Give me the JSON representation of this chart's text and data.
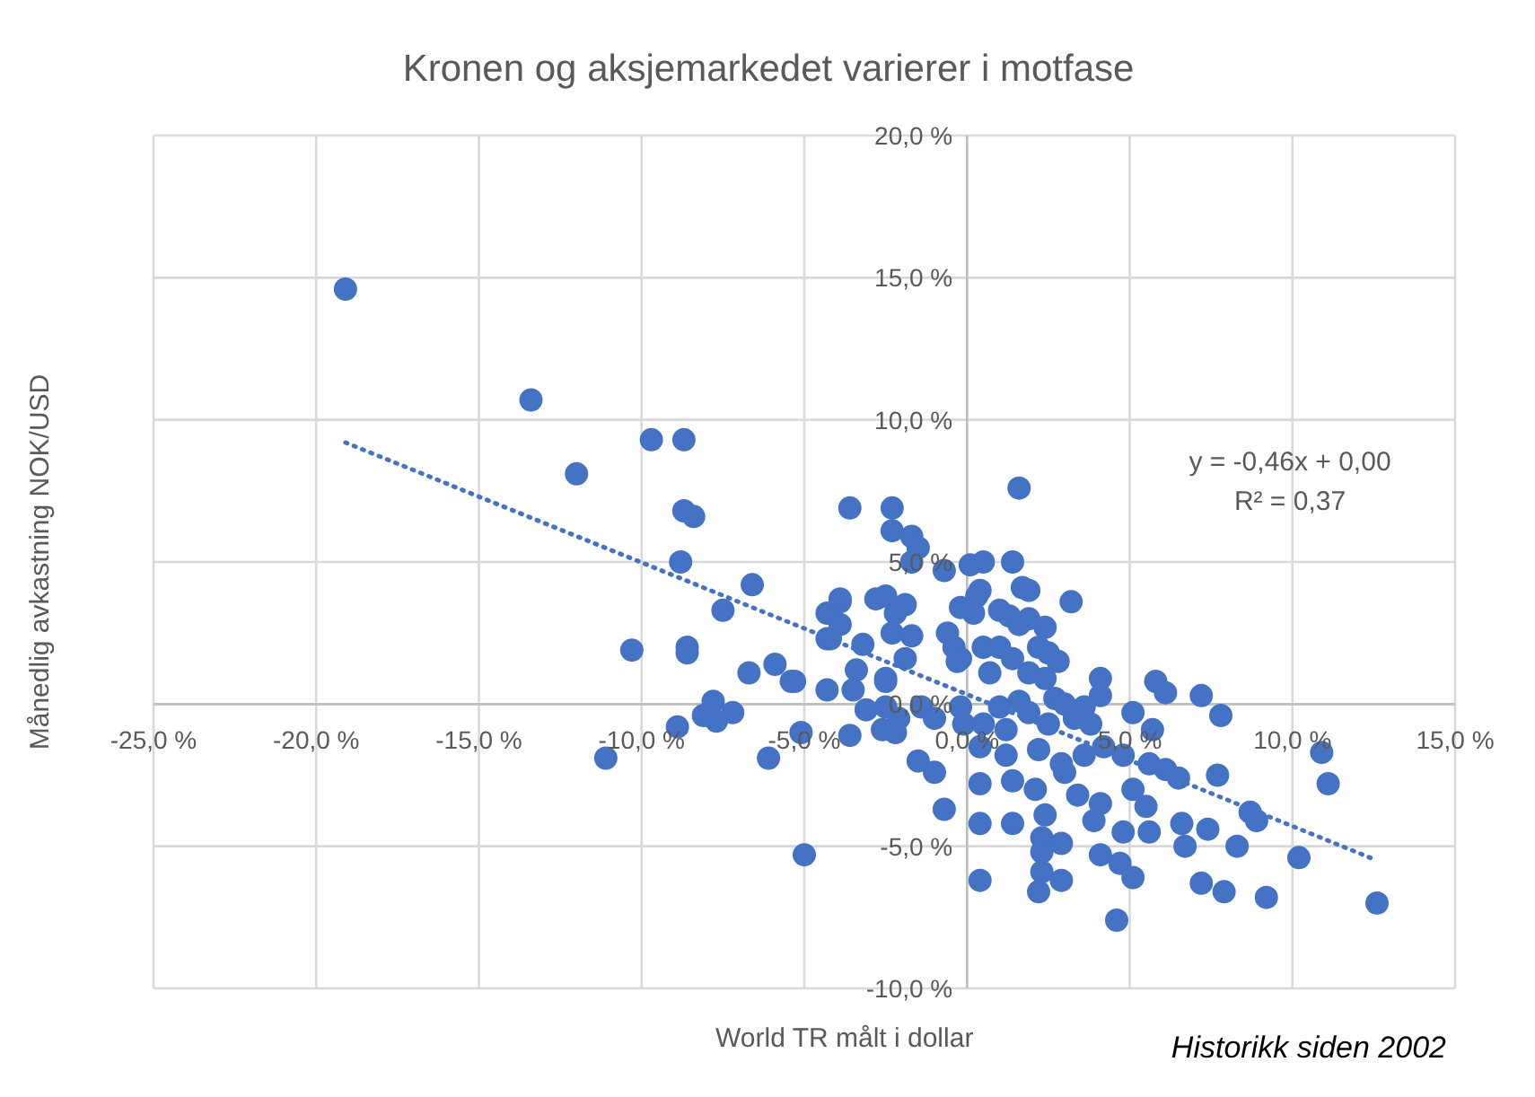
{
  "chart_data": {
    "type": "scatter",
    "title": "Kronen og aksjemarkedet varierer i motfase",
    "xlabel": "World TR målt i dollar",
    "ylabel": "Månedlig avkastning NOK/USD",
    "annotations": [
      "y = -0,46x + 0,00",
      "R² = 0,37",
      "Historikk siden 2002"
    ],
    "xlim": [
      -25,
      15
    ],
    "ylim": [
      -10,
      20
    ],
    "xticks": [
      {
        "value": -25,
        "label": "-25,0 %"
      },
      {
        "value": -20,
        "label": "-20,0 %"
      },
      {
        "value": -15,
        "label": "-15,0 %"
      },
      {
        "value": -10,
        "label": "-10,0 %"
      },
      {
        "value": -5,
        "label": "-5,0 %"
      },
      {
        "value": 0,
        "label": "0,0 %"
      },
      {
        "value": 5,
        "label": "5,0 %"
      },
      {
        "value": 10,
        "label": "10,0 %"
      },
      {
        "value": 15,
        "label": "15,0 %"
      }
    ],
    "yticks": [
      {
        "value": -10,
        "label": "-10,0 %"
      },
      {
        "value": -5,
        "label": "-5,0 %"
      },
      {
        "value": 0,
        "label": "0,0 %"
      },
      {
        "value": 5,
        "label": "5,0 %"
      },
      {
        "value": 10,
        "label": "10,0 %"
      },
      {
        "value": 15,
        "label": "15,0 %"
      },
      {
        "value": 20,
        "label": "20,0 %"
      }
    ],
    "grid": true,
    "marker": "circle",
    "series": [
      {
        "color": "#4472c4",
        "x": [
          -19.1,
          -13.4,
          -12.0,
          -9.7,
          -8.7,
          -8.7,
          -8.4,
          -8.8,
          -6.6,
          -7.5,
          -10.3,
          -8.6,
          -8.6,
          -6.7,
          -5.9,
          -5.4,
          -7.8,
          -8.1,
          -7.7,
          -7.2,
          -8.9,
          -11.1,
          -6.1,
          -4.3,
          -4.3,
          -4.3,
          -3.9,
          -5.0,
          -0.7,
          0.4,
          0.4,
          1.4,
          2.3,
          2.3,
          2.3,
          2.2,
          2.9,
          2.9,
          2.4,
          4.6,
          4.1,
          4.7,
          5.1,
          4.8,
          3.9,
          4.1,
          3.4,
          3.0,
          2.1,
          1.4,
          0.4,
          -1.0,
          -1.5,
          -3.6,
          5.8,
          6.1,
          7.2,
          7.8,
          5.1,
          5.7,
          10.9,
          11.1,
          6.1,
          6.5,
          7.7,
          5.1,
          5.5,
          8.7,
          8.9,
          6.6,
          7.4,
          5.6,
          6.7,
          8.3,
          10.2,
          7.2,
          7.9,
          9.2,
          12.6,
          -3.6,
          -2.3,
          -2.3,
          -1.7,
          -1.5,
          -1.7,
          1.6,
          1.4,
          0.1,
          0.5,
          -0.7,
          1.7,
          1.9,
          3.2,
          0.4,
          0.3,
          -0.2,
          0.2,
          -3.9,
          -3.9,
          -4.2,
          -2.8,
          -2.5,
          -1.9,
          -2.2,
          -2.3,
          -1.7,
          -3.2,
          -1.9,
          -3.4,
          -2.5,
          -2.5,
          -3.5,
          -5.3,
          -0.6,
          -0.4,
          -0.2,
          -0.3,
          0.7,
          0.5,
          1.0,
          1.3,
          1.6,
          1.9,
          2.4,
          2.2,
          2.5,
          2.8,
          1.9,
          2.4,
          1.4,
          1.0,
          4.1,
          -2.5,
          -2.1,
          -2.6,
          -1.4,
          -1.0,
          -0.2,
          -0.1,
          1.0,
          1.6,
          1.9,
          2.7,
          3.0,
          3.6,
          3.8,
          3.3,
          2.5,
          1.2,
          0.5,
          0.4,
          1.2,
          2.2,
          2.9,
          3.6,
          4.2,
          4.8,
          5.6,
          4.1,
          -2.2,
          -3.1,
          -5.1
        ],
        "values": [
          14.6,
          10.7,
          8.1,
          9.3,
          9.3,
          6.8,
          6.6,
          5.0,
          4.2,
          3.3,
          1.9,
          2.0,
          1.8,
          1.1,
          1.4,
          0.8,
          0.1,
          -0.4,
          -0.6,
          -0.3,
          -0.8,
          -1.9,
          -1.9,
          0.5,
          2.3,
          3.2,
          3.6,
          -5.3,
          -3.7,
          -6.2,
          -4.2,
          -4.2,
          -4.7,
          -5.2,
          -5.9,
          -6.6,
          -6.2,
          -4.9,
          -3.9,
          -7.6,
          -5.3,
          -5.6,
          -6.1,
          -4.5,
          -4.1,
          -3.5,
          -3.2,
          -2.4,
          -3.0,
          -2.7,
          -2.8,
          -2.4,
          -2.0,
          -1.1,
          0.8,
          0.4,
          0.3,
          -0.4,
          -0.3,
          -0.9,
          -1.7,
          -2.8,
          -2.3,
          -2.6,
          -2.5,
          -3.0,
          -3.6,
          -3.8,
          -4.1,
          -4.2,
          -4.4,
          -4.5,
          -5.0,
          -5.0,
          -5.4,
          -6.3,
          -6.6,
          -6.8,
          -7.0,
          6.9,
          6.9,
          6.1,
          5.9,
          5.5,
          5.0,
          7.6,
          5.0,
          4.9,
          5.0,
          4.7,
          4.1,
          4.0,
          3.6,
          4.0,
          3.8,
          3.4,
          3.2,
          3.7,
          2.8,
          2.3,
          3.7,
          3.8,
          3.5,
          3.2,
          2.5,
          2.4,
          2.1,
          1.6,
          1.2,
          0.9,
          0.8,
          0.5,
          0.8,
          2.5,
          2.0,
          1.6,
          1.5,
          1.1,
          2.0,
          3.3,
          3.1,
          2.8,
          3.0,
          2.7,
          2.0,
          1.8,
          1.5,
          1.1,
          0.9,
          1.6,
          2.0,
          0.9,
          -0.1,
          -0.5,
          -0.9,
          -0.1,
          -0.5,
          -0.1,
          -0.7,
          -0.1,
          0.1,
          -0.3,
          0.2,
          0.0,
          -0.1,
          -0.7,
          -0.5,
          -0.7,
          -0.9,
          -0.7,
          -1.5,
          -1.8,
          -1.6,
          -2.1,
          -1.8,
          -1.5,
          -1.8,
          -2.1,
          0.3,
          -1.0,
          -0.2,
          -1.0
        ]
      },
      {
        "type": "line",
        "color": "#4472c4",
        "marker": "none",
        "line_style": "dotted",
        "x": [
          -19.1,
          12.6
        ],
        "values": [
          9.2,
          -5.5
        ]
      }
    ]
  }
}
